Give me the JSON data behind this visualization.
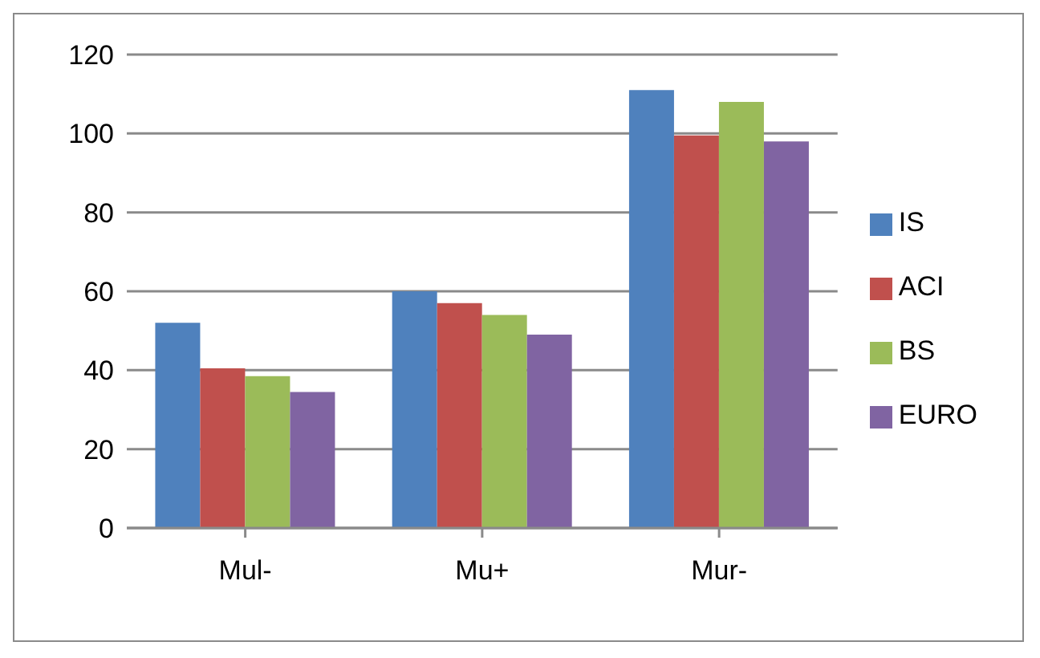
{
  "chart_data": {
    "type": "bar",
    "categories": [
      "Mul-",
      "Mu+",
      "Mur-"
    ],
    "series": [
      {
        "name": "IS",
        "color": "#4f81bd",
        "values": [
          52,
          60,
          111
        ]
      },
      {
        "name": "ACI",
        "color": "#c0504d",
        "values": [
          40.5,
          57,
          99.5
        ]
      },
      {
        "name": "BS",
        "color": "#9bbb59",
        "values": [
          38.5,
          54,
          108
        ]
      },
      {
        "name": "EURO",
        "color": "#8064a2",
        "values": [
          34.5,
          49,
          98
        ]
      }
    ],
    "ylim": [
      0,
      120
    ],
    "yticks": [
      0,
      20,
      40,
      60,
      80,
      100,
      120
    ],
    "grid": "y",
    "legend": "right"
  }
}
